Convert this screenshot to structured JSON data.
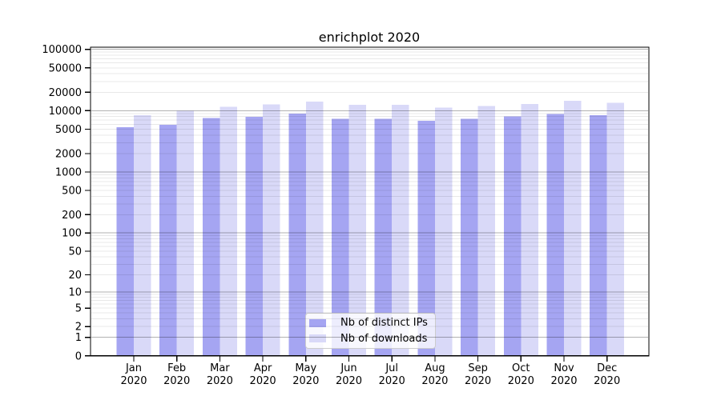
{
  "figure": {
    "background": "#ffffff",
    "frame_color": "#000000"
  },
  "chart_data": {
    "type": "bar",
    "title": "enrichplot 2020",
    "xlabel": "",
    "ylabel": "",
    "y_scale": "log1p",
    "ylim": [
      0,
      100000
    ],
    "grid": "horizontal; decade lines (1,10,100,1000,10000,100000) darker, intermediate multiples lighter",
    "legend_position": "lower center inside plot",
    "months": [
      "Jan",
      "Feb",
      "Mar",
      "Apr",
      "May",
      "Jun",
      "Jul",
      "Aug",
      "Sep",
      "Oct",
      "Nov",
      "Dec"
    ],
    "year_label": "2020",
    "y_ticks": [
      0,
      1,
      2,
      5,
      10,
      20,
      50,
      100,
      200,
      500,
      1000,
      2000,
      5000,
      10000,
      20000,
      50000,
      100000
    ],
    "series": [
      {
        "name": "Nb of distinct IPs",
        "color": "#a5a5f2",
        "values": [
          5400,
          5900,
          7600,
          7900,
          8900,
          7400,
          7400,
          6800,
          7400,
          8000,
          8800,
          8400
        ]
      },
      {
        "name": "Nb of downloads",
        "color": "#d9d9f8",
        "values": [
          8400,
          10000,
          11600,
          12600,
          14100,
          12400,
          12500,
          11200,
          11900,
          12900,
          14500,
          13400
        ]
      }
    ]
  },
  "legend": {
    "items": [
      {
        "label": "Nb of distinct IPs",
        "color": "#a5a5f2"
      },
      {
        "label": "Nb of downloads",
        "color": "#d9d9f8"
      }
    ]
  },
  "grid_colors": {
    "decade_line": "rgba(0,0,0,0.30)",
    "minor_line": "rgba(0,0,0,0.09)"
  }
}
